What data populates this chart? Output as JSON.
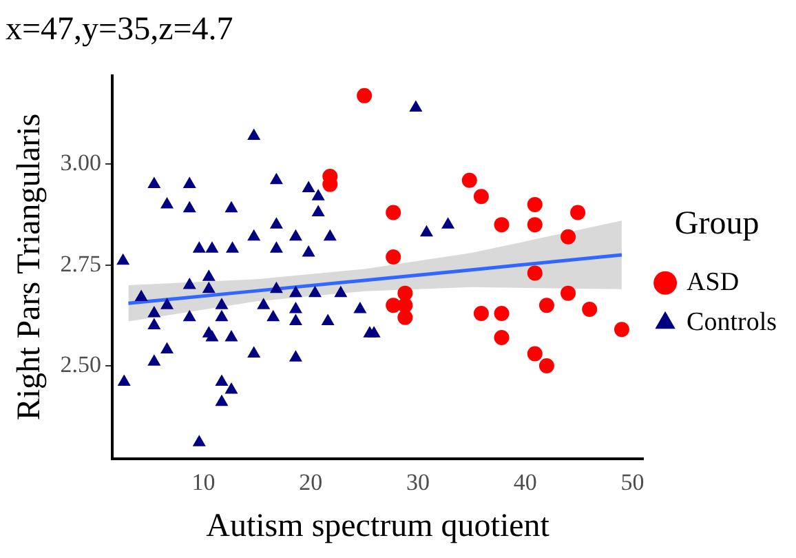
{
  "chart_data": {
    "type": "scatter",
    "title": "x=47,y=35,z=4.7",
    "xlabel": "Autism spectrum quotient",
    "ylabel": "Right Pars Triangularis",
    "legend_title": "Group",
    "legend": "right",
    "grid": false,
    "xlim": [
      1.5,
      51
    ],
    "xticks": [
      10,
      20,
      30,
      40,
      50
    ],
    "ylim": [
      2.27,
      3.22
    ],
    "yticks": [
      {
        "value": 2.5,
        "label": "2.50"
      },
      2.75,
      {
        "value": 3,
        "label": "3.00"
      }
    ],
    "series": [
      {
        "name": "ASD",
        "type": "scatter",
        "marker": "circle",
        "color": "#ff0000",
        "x": [
          25,
          21.8,
          21.8,
          27.7,
          34.8,
          35.9,
          40.9,
          44.9,
          37.8,
          40.9,
          44,
          27.7,
          40.9,
          28.8,
          27.7,
          28.8,
          28.8,
          35.9,
          37.8,
          42,
          44,
          46,
          49,
          37.8,
          40.9,
          42
        ],
        "values": [
          3.17,
          2.97,
          2.95,
          2.88,
          2.96,
          2.92,
          2.9,
          2.88,
          2.85,
          2.85,
          2.82,
          2.77,
          2.73,
          2.68,
          2.65,
          2.65,
          2.62,
          2.63,
          2.63,
          2.65,
          2.68,
          2.64,
          2.59,
          2.57,
          2.53,
          2.5
        ]
      },
      {
        "name": "Controls",
        "type": "scatter",
        "marker": "triangle",
        "color": "#000080",
        "x": [
          14.7,
          5.4,
          8.7,
          16.8,
          19.8,
          6.6,
          8.7,
          12.6,
          20.7,
          20.7,
          16.8,
          14.7,
          18.6,
          21.8,
          16.8,
          19.8,
          9.6,
          10.8,
          12.7,
          2.5,
          8.7,
          10.5,
          10.5,
          16.8,
          4.2,
          18.6,
          20.4,
          22.8,
          6.6,
          11.7,
          15.6,
          18.6,
          5.4,
          8.7,
          11.7,
          16.5,
          18.6,
          21.6,
          24.6,
          5.4,
          10.5,
          10.8,
          12.6,
          25.5,
          14.7,
          6.6,
          5.4,
          18.6,
          2.6,
          11.7,
          12.6,
          11.7,
          9.6,
          29.8,
          32.8,
          30.8,
          25.9
        ],
        "values": [
          3.07,
          2.95,
          2.95,
          2.96,
          2.94,
          2.9,
          2.89,
          2.89,
          2.92,
          2.88,
          2.85,
          2.82,
          2.82,
          2.82,
          2.79,
          2.78,
          2.79,
          2.79,
          2.79,
          2.76,
          2.7,
          2.72,
          2.69,
          2.69,
          2.67,
          2.68,
          2.68,
          2.68,
          2.65,
          2.65,
          2.65,
          2.64,
          2.63,
          2.62,
          2.62,
          2.62,
          2.61,
          2.61,
          2.64,
          2.6,
          2.58,
          2.57,
          2.57,
          2.58,
          2.53,
          2.54,
          2.51,
          2.52,
          2.46,
          2.46,
          2.44,
          2.41,
          2.31,
          3.14,
          2.85,
          2.83,
          2.58
        ]
      },
      {
        "type": "line",
        "marker": "none",
        "color": "#3366ff",
        "x": [
          3,
          15,
          25,
          35,
          49
        ],
        "values": [
          2.655,
          2.686,
          2.712,
          2.738,
          2.775
        ],
        "lower": [
          2.61,
          2.66,
          2.685,
          2.695,
          2.69
        ],
        "upper": [
          2.7,
          2.715,
          2.74,
          2.78,
          2.86
        ]
      }
    ]
  }
}
